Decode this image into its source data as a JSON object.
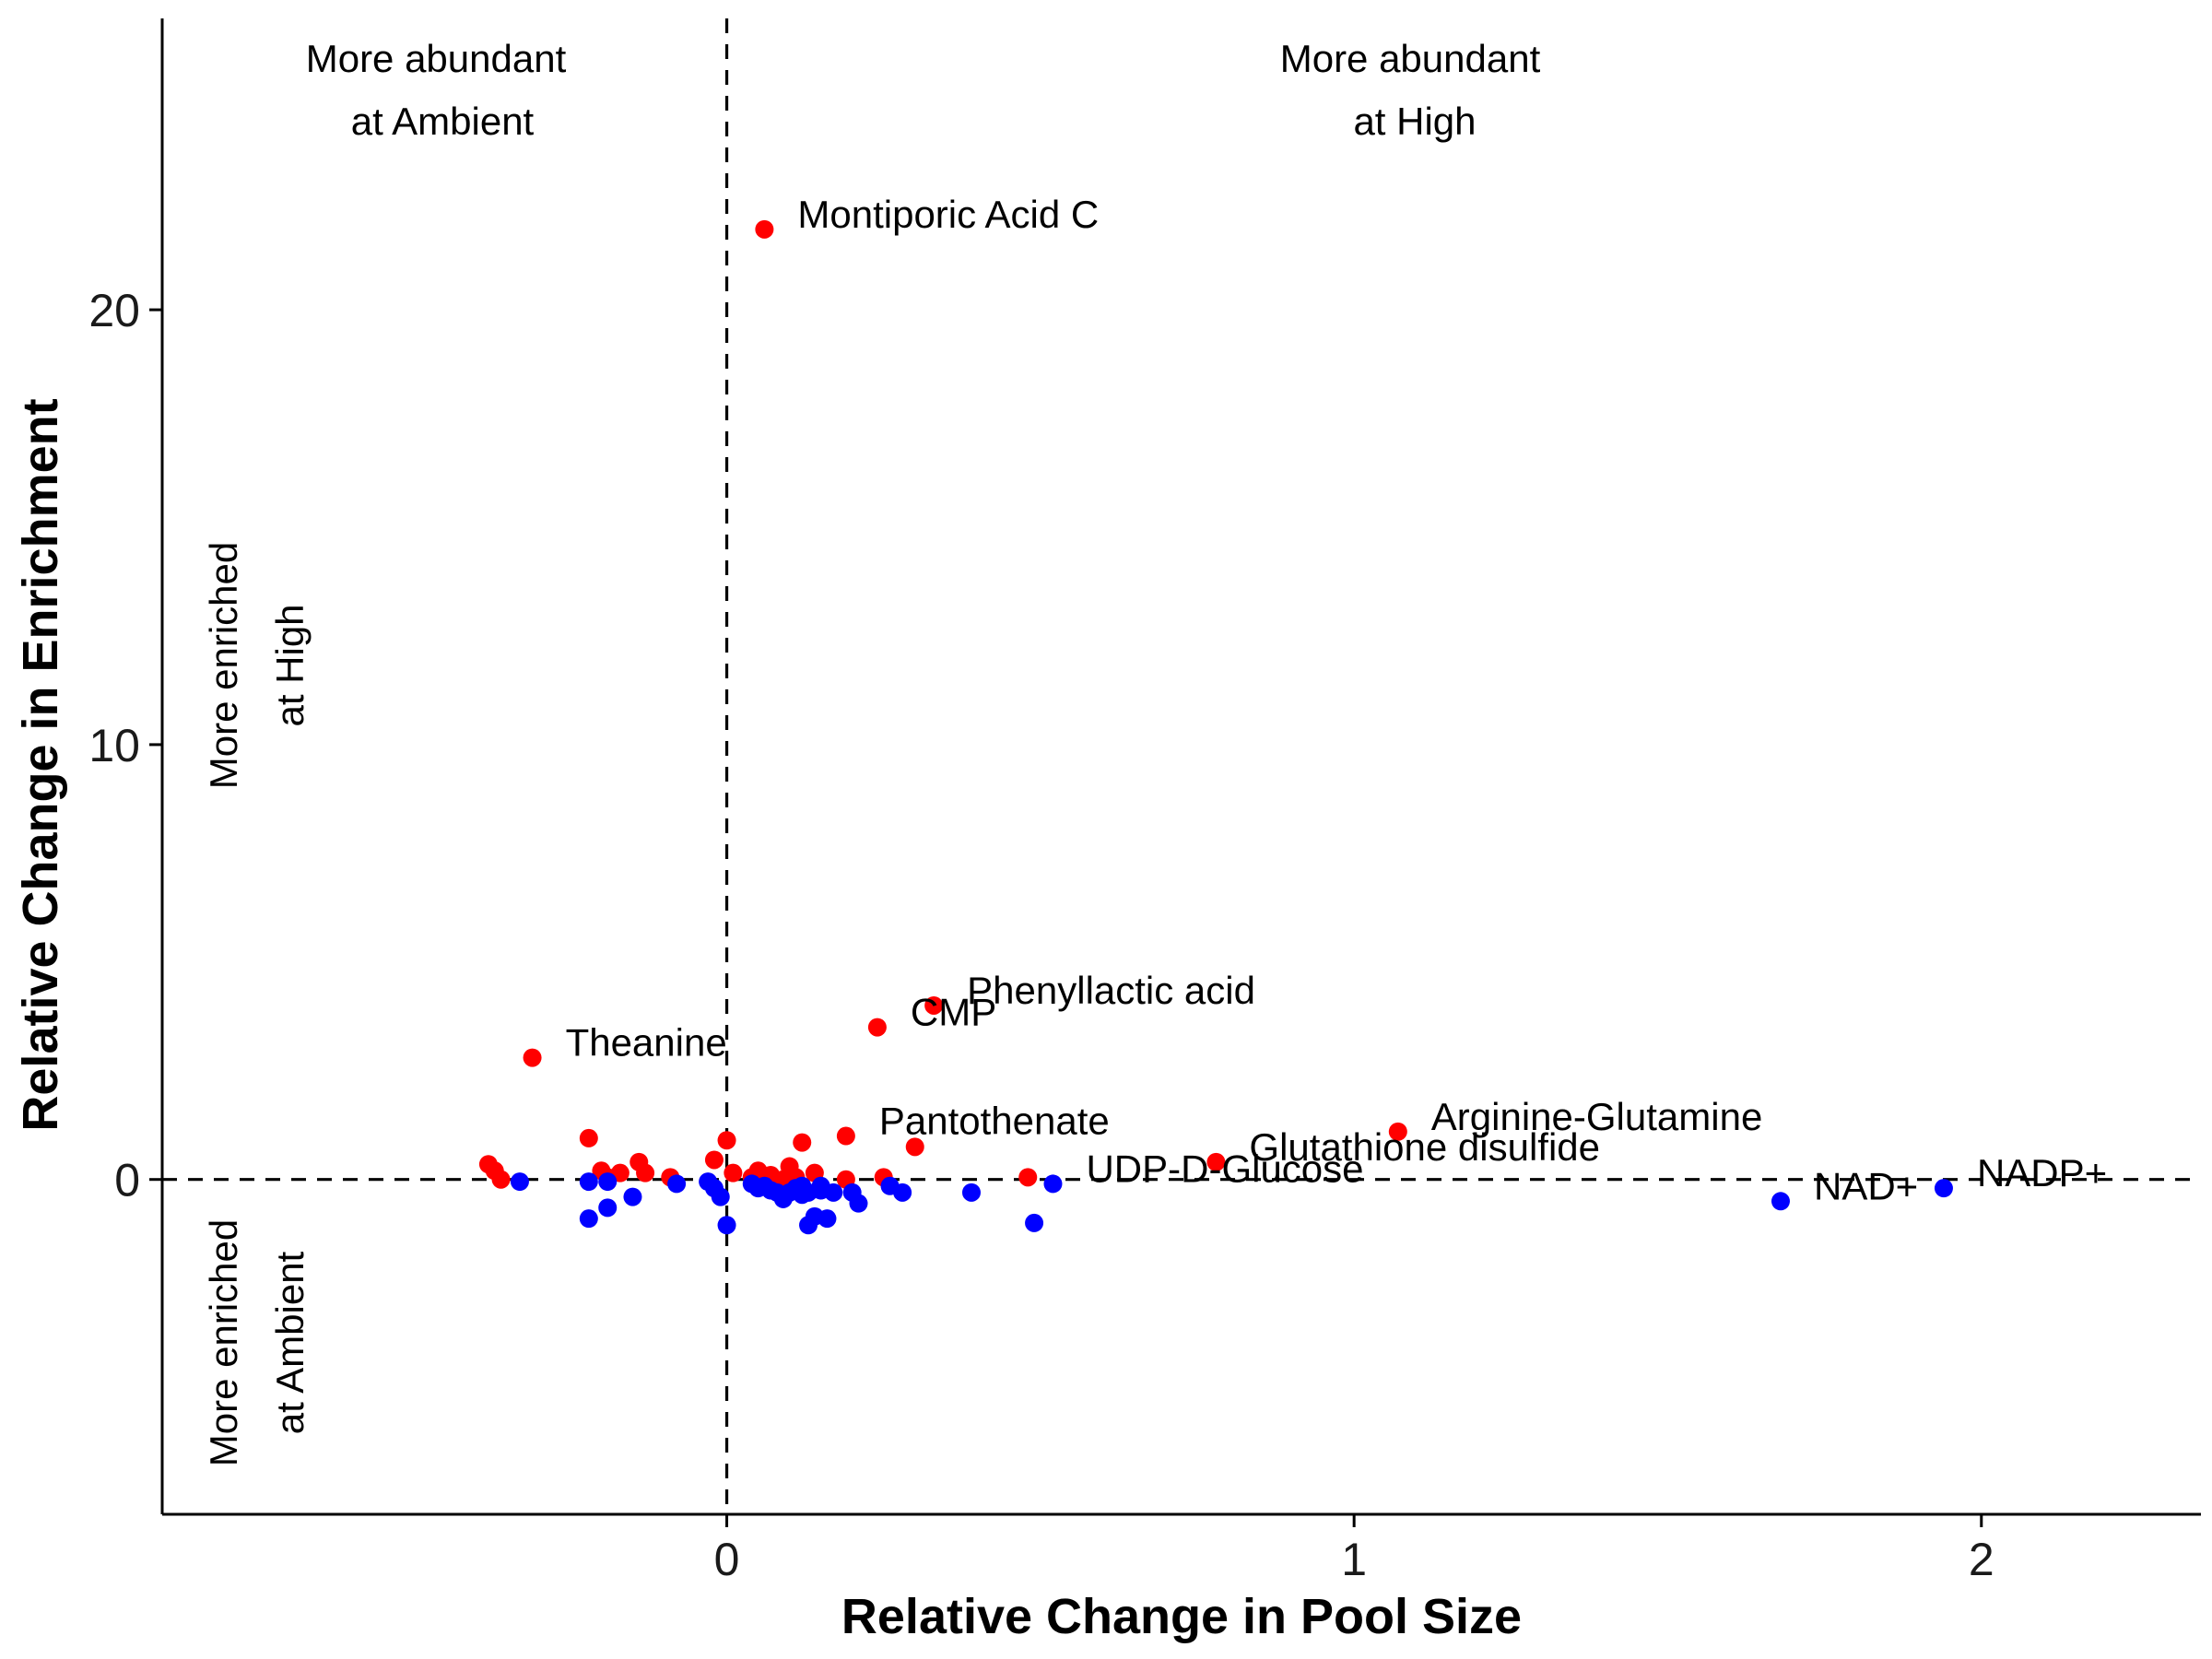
{
  "chart_data": {
    "type": "scatter",
    "xlabel": "Relative Change in Pool Size",
    "ylabel": "Relative Change in Enrichment",
    "xlim": [
      -0.9,
      2.35
    ],
    "ylim": [
      -7.7,
      26.7
    ],
    "x_ticks": [
      0,
      1,
      2
    ],
    "y_ticks": [
      0,
      10,
      20
    ],
    "grid": false,
    "reference_lines": {
      "x": 0,
      "y": 0
    },
    "quadrant_labels": {
      "top_left": [
        "More abundant",
        "at Ambient"
      ],
      "top_right": [
        "More abundant",
        "at High"
      ],
      "left_upper": [
        "More enriched",
        "at High"
      ],
      "left_lower": [
        "More enriched",
        "at Ambient"
      ]
    },
    "quadrant_colors": {
      "top": "#000000",
      "left_upper": "#ff0000",
      "left_lower": "#0000ff"
    },
    "series": [
      {
        "color": "#ff0000",
        "points": [
          [
            -0.38,
            0.35
          ],
          [
            -0.37,
            0.2
          ],
          [
            -0.36,
            0.0
          ],
          [
            -0.22,
            0.95
          ],
          [
            -0.2,
            0.2
          ],
          [
            -0.19,
            0.05
          ],
          [
            -0.17,
            0.15
          ],
          [
            -0.14,
            0.4
          ],
          [
            -0.13,
            0.15
          ],
          [
            -0.09,
            0.05
          ],
          [
            -0.02,
            0.45
          ],
          [
            0.0,
            0.9
          ],
          [
            0.01,
            0.15
          ],
          [
            0.04,
            0.05
          ],
          [
            0.05,
            0.2
          ],
          [
            0.07,
            0.1
          ],
          [
            0.09,
            0.0
          ],
          [
            0.1,
            0.3
          ],
          [
            0.11,
            0.05
          ],
          [
            0.12,
            0.85
          ],
          [
            0.14,
            0.15
          ],
          [
            0.19,
            0.0
          ],
          [
            0.25,
            0.05
          ],
          [
            0.48,
            0.05
          ]
        ],
        "labeled_points": [
          {
            "name": "Montiporic Acid C",
            "x": 0.06,
            "y": 21.85
          },
          {
            "name": "Phenyllactic acid",
            "x": 0.33,
            "y": 4.0
          },
          {
            "name": "CMP",
            "x": 0.24,
            "y": 3.5
          },
          {
            "name": "Theanine",
            "x": -0.31,
            "y": 2.8
          },
          {
            "name": "Pantothenate",
            "x": 0.19,
            "y": 1.0
          },
          {
            "name": "",
            "x": 0.3,
            "y": 0.75
          },
          {
            "name": "Arginine-Glutamine",
            "x": 1.07,
            "y": 1.1
          },
          {
            "name": "Glutathione disulfide",
            "x": 0.78,
            "y": 0.4
          }
        ]
      },
      {
        "color": "#0000ff",
        "points": [
          [
            -0.33,
            -0.05
          ],
          [
            -0.22,
            -0.05
          ],
          [
            -0.22,
            -0.9
          ],
          [
            -0.19,
            -0.05
          ],
          [
            -0.19,
            -0.65
          ],
          [
            -0.15,
            -0.4
          ],
          [
            -0.08,
            -0.1
          ],
          [
            -0.03,
            -0.05
          ],
          [
            -0.02,
            -0.2
          ],
          [
            -0.01,
            -0.4
          ],
          [
            0.0,
            -1.05
          ],
          [
            0.04,
            -0.1
          ],
          [
            0.05,
            -0.2
          ],
          [
            0.06,
            -0.15
          ],
          [
            0.07,
            -0.25
          ],
          [
            0.08,
            -0.3
          ],
          [
            0.09,
            -0.45
          ],
          [
            0.1,
            -0.3
          ],
          [
            0.11,
            -0.2
          ],
          [
            0.12,
            -0.35
          ],
          [
            0.12,
            -0.15
          ],
          [
            0.13,
            -0.3
          ],
          [
            0.13,
            -1.05
          ],
          [
            0.14,
            -0.85
          ],
          [
            0.15,
            -0.25
          ],
          [
            0.15,
            -0.15
          ],
          [
            0.16,
            -0.9
          ],
          [
            0.17,
            -0.3
          ],
          [
            0.2,
            -0.3
          ],
          [
            0.21,
            -0.55
          ],
          [
            0.26,
            -0.15
          ],
          [
            0.28,
            -0.3
          ],
          [
            0.39,
            -0.3
          ],
          [
            0.49,
            -1.0
          ]
        ],
        "labeled_points": [
          {
            "name": "UDP-D-Glucose",
            "x": 0.52,
            "y": -0.1
          },
          {
            "name": "NAD+",
            "x": 1.68,
            "y": -0.5
          },
          {
            "name": "NADP+",
            "x": 1.94,
            "y": -0.2
          }
        ]
      }
    ]
  }
}
